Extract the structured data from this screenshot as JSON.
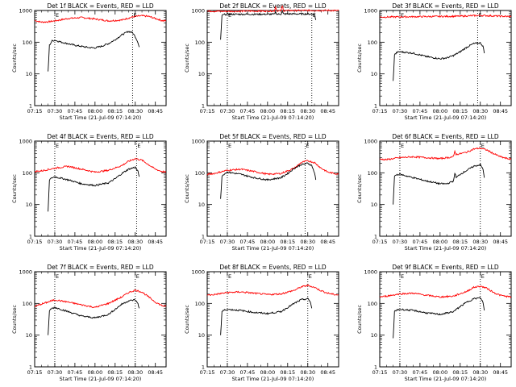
{
  "chart_data": [
    {
      "type": "line",
      "title": "Det 1f BLACK = Events, RED = LLD",
      "ylabel": "Counts/sec",
      "xlabel": "Start Time (21-Jul-09 07:14:20)",
      "yscale": "log",
      "ylim": [
        1,
        1000
      ],
      "xlim": [
        "07:15",
        "08:53"
      ],
      "x_ticks": [
        "07:15",
        "07:30",
        "07:45",
        "08:00",
        "08:15",
        "08:30",
        "08:45"
      ],
      "y_ticks": [
        "1",
        "10",
        "100",
        "1000"
      ],
      "markers": [
        {
          "label": "E",
          "x": "07:30"
        },
        {
          "label": "E",
          "x": "08:28"
        }
      ],
      "series": [
        {
          "name": "LLD",
          "color": "#ff0000",
          "x": [
            "07:15",
            "07:20",
            "07:25",
            "07:30",
            "07:40",
            "07:50",
            "08:00",
            "08:10",
            "08:20",
            "08:25",
            "08:30",
            "08:35",
            "08:40",
            "08:45",
            "08:50",
            "08:53"
          ],
          "y": [
            480,
            430,
            440,
            470,
            560,
            600,
            540,
            470,
            500,
            580,
            650,
            680,
            650,
            560,
            480,
            470
          ]
        },
        {
          "name": "Events",
          "color": "#000000",
          "x": [
            "07:25",
            "07:26",
            "07:28",
            "07:30",
            "07:35",
            "07:45",
            "07:55",
            "08:00",
            "08:05",
            "08:10",
            "08:15",
            "08:20",
            "08:25",
            "08:28",
            "08:30",
            "08:32",
            "08:33"
          ],
          "y": [
            12,
            80,
            110,
            115,
            100,
            80,
            68,
            66,
            75,
            90,
            120,
            170,
            220,
            200,
            150,
            100,
            70
          ]
        }
      ]
    },
    {
      "type": "line",
      "title": "Det 2f BLACK = Events, RED = LLD",
      "ylabel": "Counts/sec",
      "xlabel": "Start Time (21-Jul-09 07:14:20)",
      "yscale": "log",
      "ylim": [
        1,
        1000
      ],
      "xlim": [
        "07:15",
        "08:53"
      ],
      "x_ticks": [
        "07:15",
        "07:30",
        "07:45",
        "08:00",
        "08:15",
        "08:30",
        "08:45"
      ],
      "y_ticks": [
        "1",
        "10",
        "100",
        "1000"
      ],
      "markers": [
        {
          "label": "E",
          "x": "07:30"
        },
        {
          "label": "E",
          "x": "08:33"
        }
      ],
      "series": [
        {
          "name": "LLD",
          "color": "#ff0000",
          "x": [
            "07:15",
            "07:30",
            "07:45",
            "08:00",
            "08:05",
            "08:06",
            "08:07",
            "08:08",
            "08:10",
            "08:11",
            "08:12",
            "08:13",
            "08:15",
            "08:30",
            "08:45",
            "08:53"
          ],
          "y": [
            950,
            940,
            960,
            960,
            970,
            1300,
            980,
            960,
            980,
            1350,
            990,
            980,
            990,
            1000,
            1000,
            990
          ]
        },
        {
          "name": "Events",
          "color": "#000000",
          "x": [
            "07:25",
            "07:26",
            "07:28",
            "07:30",
            "07:45",
            "08:00",
            "08:05",
            "08:06",
            "08:07",
            "08:10",
            "08:11",
            "08:12",
            "08:15",
            "08:30",
            "08:35",
            "08:36"
          ],
          "y": [
            120,
            700,
            750,
            760,
            760,
            760,
            760,
            900,
            760,
            770,
            920,
            770,
            780,
            780,
            760,
            500
          ]
        }
      ]
    },
    {
      "type": "line",
      "title": "Det 3f BLACK = Events, RED = LLD",
      "ylabel": "Counts/sec",
      "xlabel": "Start Time (21-Jul-09 07:14:20)",
      "yscale": "log",
      "ylim": [
        1,
        1000
      ],
      "xlim": [
        "07:15",
        "08:53"
      ],
      "x_ticks": [
        "07:15",
        "07:30",
        "07:45",
        "08:00",
        "08:15",
        "08:30",
        "08:45"
      ],
      "y_ticks": [
        "1",
        "10",
        "100",
        "1000"
      ],
      "markers": [
        {
          "label": "E",
          "x": "07:30"
        },
        {
          "label": "E",
          "x": "08:28"
        }
      ],
      "series": [
        {
          "name": "LLD",
          "color": "#ff0000",
          "x": [
            "07:15",
            "07:30",
            "07:45",
            "08:00",
            "08:15",
            "08:30",
            "08:45",
            "08:53"
          ],
          "y": [
            620,
            630,
            640,
            650,
            660,
            700,
            660,
            640
          ]
        },
        {
          "name": "Events",
          "color": "#000000",
          "x": [
            "07:25",
            "07:26",
            "07:28",
            "07:30",
            "07:40",
            "07:50",
            "08:00",
            "08:05",
            "08:10",
            "08:15",
            "08:20",
            "08:25",
            "08:30",
            "08:32",
            "08:33"
          ],
          "y": [
            6,
            40,
            48,
            50,
            45,
            35,
            30,
            32,
            38,
            50,
            70,
            90,
            95,
            75,
            45
          ]
        }
      ]
    },
    {
      "type": "line",
      "title": "Det 4f BLACK = Events, RED = LLD",
      "ylabel": "Counts/sec",
      "xlabel": "Start Time (21-Jul-09 07:14:20)",
      "yscale": "log",
      "ylim": [
        1,
        1000
      ],
      "xlim": [
        "07:15",
        "08:53"
      ],
      "x_ticks": [
        "07:15",
        "07:30",
        "07:45",
        "08:00",
        "08:15",
        "08:30",
        "08:45"
      ],
      "y_ticks": [
        "1",
        "10",
        "100",
        "1000"
      ],
      "markers": [
        {
          "label": "E",
          "x": "07:30"
        },
        {
          "label": "E",
          "x": "08:31"
        }
      ],
      "series": [
        {
          "name": "LLD",
          "color": "#ff0000",
          "x": [
            "07:15",
            "07:20",
            "07:30",
            "07:40",
            "07:50",
            "08:00",
            "08:10",
            "08:20",
            "08:25",
            "08:30",
            "08:35",
            "08:40",
            "08:45",
            "08:50",
            "08:53"
          ],
          "y": [
            110,
            115,
            140,
            160,
            130,
            105,
            120,
            170,
            230,
            280,
            250,
            180,
            130,
            110,
            105
          ]
        },
        {
          "name": "Events",
          "color": "#000000",
          "x": [
            "07:25",
            "07:26",
            "07:28",
            "07:30",
            "07:40",
            "07:50",
            "08:00",
            "08:10",
            "08:15",
            "08:20",
            "08:25",
            "08:30",
            "08:32",
            "08:33"
          ],
          "y": [
            6,
            60,
            70,
            75,
            60,
            45,
            40,
            48,
            65,
            95,
            130,
            150,
            110,
            75
          ]
        }
      ]
    },
    {
      "type": "line",
      "title": "Det 5f BLACK = Events, RED = LLD",
      "ylabel": "Counts/sec",
      "xlabel": "Start Time (21-Jul-09 07:14:20)",
      "yscale": "log",
      "ylim": [
        1,
        1000
      ],
      "xlim": [
        "07:15",
        "08:53"
      ],
      "x_ticks": [
        "07:15",
        "07:30",
        "07:45",
        "08:00",
        "08:15",
        "08:30",
        "08:45"
      ],
      "y_ticks": [
        "1",
        "10",
        "100",
        "1000"
      ],
      "markers": [
        {
          "label": "E",
          "x": "07:30"
        },
        {
          "label": "E",
          "x": "08:28"
        }
      ],
      "series": [
        {
          "name": "LLD",
          "color": "#ff0000",
          "x": [
            "07:15",
            "07:20",
            "07:30",
            "07:40",
            "07:50",
            "08:00",
            "08:10",
            "08:20",
            "08:25",
            "08:30",
            "08:35",
            "08:40",
            "08:45",
            "08:50",
            "08:53"
          ],
          "y": [
            90,
            95,
            120,
            130,
            110,
            90,
            95,
            140,
            210,
            240,
            210,
            140,
            105,
            95,
            90
          ]
        },
        {
          "name": "Events",
          "color": "#000000",
          "x": [
            "07:25",
            "07:26",
            "07:28",
            "07:30",
            "07:40",
            "07:50",
            "08:00",
            "08:10",
            "08:15",
            "08:20",
            "08:25",
            "08:30",
            "08:33",
            "08:35",
            "08:36"
          ],
          "y": [
            15,
            80,
            95,
            105,
            90,
            70,
            60,
            70,
            95,
            140,
            180,
            200,
            170,
            100,
            60
          ]
        }
      ]
    },
    {
      "type": "line",
      "title": "Det 6f BLACK = Events, RED = LLD",
      "ylabel": "Counts/sec",
      "xlabel": "Start Time (21-Jul-09 07:14:20)",
      "yscale": "log",
      "ylim": [
        1,
        1000
      ],
      "xlim": [
        "07:15",
        "08:53"
      ],
      "x_ticks": [
        "07:15",
        "07:30",
        "07:45",
        "08:00",
        "08:15",
        "08:30",
        "08:45"
      ],
      "y_ticks": [
        "1",
        "10",
        "100",
        "1000"
      ],
      "markers": [
        {
          "label": "E",
          "x": "07:30"
        },
        {
          "label": "E",
          "x": "08:30"
        }
      ],
      "series": [
        {
          "name": "LLD",
          "color": "#ff0000",
          "x": [
            "07:15",
            "07:20",
            "07:30",
            "07:40",
            "07:50",
            "08:00",
            "08:10",
            "08:11",
            "08:12",
            "08:15",
            "08:20",
            "08:25",
            "08:30",
            "08:35",
            "08:40",
            "08:45",
            "08:50",
            "08:53"
          ],
          "y": [
            270,
            260,
            300,
            320,
            300,
            280,
            320,
            480,
            380,
            400,
            450,
            560,
            600,
            520,
            400,
            320,
            280,
            270
          ]
        },
        {
          "name": "Events",
          "color": "#000000",
          "x": [
            "07:25",
            "07:26",
            "07:28",
            "07:30",
            "07:40",
            "07:50",
            "08:00",
            "08:05",
            "08:10",
            "08:11",
            "08:12",
            "08:15",
            "08:20",
            "08:25",
            "08:30",
            "08:32",
            "08:33"
          ],
          "y": [
            10,
            80,
            88,
            90,
            70,
            55,
            45,
            45,
            55,
            100,
            70,
            90,
            120,
            160,
            180,
            130,
            70
          ]
        }
      ]
    },
    {
      "type": "line",
      "title": "Det 7f BLACK = Events, RED = LLD",
      "ylabel": "Counts/sec",
      "xlabel": "Start Time (21-Jul-09 07:14:20)",
      "yscale": "log",
      "ylim": [
        1,
        1000
      ],
      "xlim": [
        "07:15",
        "08:53"
      ],
      "x_ticks": [
        "07:15",
        "07:30",
        "07:45",
        "08:00",
        "08:15",
        "08:30",
        "08:45"
      ],
      "y_ticks": [
        "1",
        "10",
        "100",
        "1000"
      ],
      "markers": [
        {
          "label": "E",
          "x": "07:30"
        },
        {
          "label": "E",
          "x": "08:30"
        }
      ],
      "series": [
        {
          "name": "LLD",
          "color": "#ff0000",
          "x": [
            "07:15",
            "07:20",
            "07:30",
            "07:40",
            "07:50",
            "08:00",
            "08:10",
            "08:20",
            "08:25",
            "08:30",
            "08:35",
            "08:40",
            "08:45",
            "08:50",
            "08:53"
          ],
          "y": [
            80,
            95,
            130,
            110,
            90,
            75,
            100,
            160,
            220,
            260,
            230,
            160,
            110,
            85,
            80
          ]
        },
        {
          "name": "Events",
          "color": "#000000",
          "x": [
            "07:25",
            "07:26",
            "07:28",
            "07:30",
            "07:40",
            "07:50",
            "08:00",
            "08:10",
            "08:15",
            "08:20",
            "08:25",
            "08:30",
            "08:32",
            "08:33"
          ],
          "y": [
            10,
            60,
            70,
            75,
            55,
            40,
            35,
            45,
            65,
            95,
            120,
            130,
            100,
            70
          ]
        }
      ]
    },
    {
      "type": "line",
      "title": "Det 8f BLACK = Events, RED = LLD",
      "ylabel": "Counts/sec",
      "xlabel": "Start Time (21-Jul-09 07:14:20)",
      "yscale": "log",
      "ylim": [
        1,
        1000
      ],
      "xlim": [
        "07:15",
        "08:53"
      ],
      "x_ticks": [
        "07:15",
        "07:30",
        "07:45",
        "08:00",
        "08:15",
        "08:30",
        "08:45"
      ],
      "y_ticks": [
        "1",
        "10",
        "100",
        "1000"
      ],
      "markers": [
        {
          "label": "E",
          "x": "07:30"
        },
        {
          "label": "E",
          "x": "08:30"
        }
      ],
      "series": [
        {
          "name": "LLD",
          "color": "#ff0000",
          "x": [
            "07:15",
            "07:20",
            "07:30",
            "07:40",
            "07:50",
            "08:00",
            "08:10",
            "08:20",
            "08:25",
            "08:30",
            "08:35",
            "08:40",
            "08:45",
            "08:50",
            "08:53"
          ],
          "y": [
            180,
            190,
            220,
            230,
            210,
            190,
            200,
            260,
            330,
            370,
            320,
            250,
            210,
            190,
            185
          ]
        },
        {
          "name": "Events",
          "color": "#000000",
          "x": [
            "07:25",
            "07:26",
            "07:28",
            "07:30",
            "07:40",
            "07:50",
            "08:00",
            "08:10",
            "08:15",
            "08:20",
            "08:25",
            "08:30",
            "08:32",
            "08:33"
          ],
          "y": [
            10,
            55,
            62,
            65,
            60,
            52,
            48,
            55,
            75,
            100,
            130,
            140,
            110,
            70
          ]
        }
      ]
    },
    {
      "type": "line",
      "title": "Det 9f BLACK = Events, RED = LLD",
      "ylabel": "Counts/sec",
      "xlabel": "Start Time (21-Jul-09 07:14:20)",
      "yscale": "log",
      "ylim": [
        1,
        1000
      ],
      "xlim": [
        "07:15",
        "08:53"
      ],
      "x_ticks": [
        "07:15",
        "07:30",
        "07:45",
        "08:00",
        "08:15",
        "08:30",
        "08:45"
      ],
      "y_ticks": [
        "1",
        "10",
        "100",
        "1000"
      ],
      "markers": [
        {
          "label": "E",
          "x": "07:30"
        },
        {
          "label": "E",
          "x": "08:30"
        }
      ],
      "series": [
        {
          "name": "LLD",
          "color": "#ff0000",
          "x": [
            "07:15",
            "07:20",
            "07:30",
            "07:40",
            "07:50",
            "08:00",
            "08:10",
            "08:20",
            "08:25",
            "08:30",
            "08:35",
            "08:40",
            "08:45",
            "08:50",
            "08:53"
          ],
          "y": [
            160,
            170,
            200,
            210,
            180,
            160,
            170,
            240,
            320,
            350,
            300,
            220,
            180,
            165,
            160
          ]
        },
        {
          "name": "Events",
          "color": "#000000",
          "x": [
            "07:25",
            "07:26",
            "07:28",
            "07:30",
            "07:40",
            "07:50",
            "08:00",
            "08:10",
            "08:15",
            "08:20",
            "08:25",
            "08:30",
            "08:32",
            "08:33"
          ],
          "y": [
            8,
            55,
            62,
            65,
            60,
            50,
            45,
            55,
            80,
            110,
            140,
            150,
            110,
            60
          ]
        }
      ]
    }
  ]
}
